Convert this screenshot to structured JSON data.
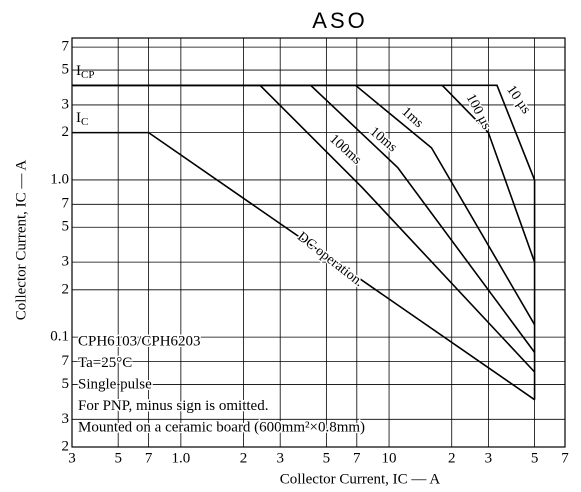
{
  "chart_data": {
    "type": "line",
    "title": "ASO",
    "xlabel": "Collector Current, IC  —  A",
    "ylabel": "Collector Current, IC — A",
    "xlog": true,
    "ylog": true,
    "grid": true,
    "xlim": [
      0.3,
      70
    ],
    "ylim": [
      0.02,
      8
    ],
    "xticks": [
      {
        "value": 0.3,
        "label": "3"
      },
      {
        "value": 0.5,
        "label": "5"
      },
      {
        "value": 0.7,
        "label": "7"
      },
      {
        "value": 1,
        "label": "1.0"
      },
      2,
      3,
      5,
      7,
      10,
      {
        "value": 20,
        "label": "2"
      },
      {
        "value": 30,
        "label": "3"
      },
      {
        "value": 50,
        "label": "5"
      },
      {
        "value": 70,
        "label": "7"
      }
    ],
    "yticks": [
      7,
      5,
      3,
      2,
      {
        "value": 1,
        "label": "1.0"
      },
      {
        "value": 0.7,
        "label": "7"
      },
      {
        "value": 0.5,
        "label": "5"
      },
      {
        "value": 0.3,
        "label": "3"
      },
      {
        "value": 0.2,
        "label": "2"
      },
      0.1,
      {
        "value": 0.07,
        "label": "7"
      },
      {
        "value": 0.05,
        "label": "5"
      },
      {
        "value": 0.03,
        "label": "3"
      },
      {
        "value": 0.02,
        "label": "2"
      }
    ],
    "series": [
      {
        "name": "DC operation.",
        "color": "#000000",
        "x": [
          0.3,
          0.7,
          50
        ],
        "values": [
          2,
          2,
          0.04
        ]
      },
      {
        "name": "100ms",
        "color": "#000000",
        "x": [
          0.3,
          2.4,
          7.4,
          50
        ],
        "values": [
          4,
          4,
          0.9,
          0.06
        ]
      },
      {
        "name": "10ms",
        "color": "#000000",
        "x": [
          0.3,
          4.2,
          11,
          50
        ],
        "values": [
          4,
          4,
          1.2,
          0.08
        ]
      },
      {
        "name": "1ms",
        "color": "#000000",
        "x": [
          0.3,
          6.9,
          16,
          50
        ],
        "values": [
          4,
          4,
          1.6,
          0.12
        ]
      },
      {
        "name": "100 µs",
        "color": "#000000",
        "x": [
          0.3,
          18,
          30,
          50
        ],
        "values": [
          4,
          4,
          2,
          0.3
        ]
      },
      {
        "name": "10 µs",
        "color": "#000000",
        "x": [
          0.3,
          33,
          50,
          50
        ],
        "values": [
          4,
          4,
          1,
          0.04
        ]
      }
    ],
    "limit_labels": [
      {
        "main": "I",
        "sub": "CP"
      },
      {
        "main": "I",
        "sub": "C"
      }
    ],
    "notes": [
      "CPH6103/CPH6203",
      "Ta=25°C",
      "Single pulse",
      "For PNP, minus sign is omitted.",
      "Mounted on a ceramic board (600mm²×0.8mm)"
    ]
  }
}
